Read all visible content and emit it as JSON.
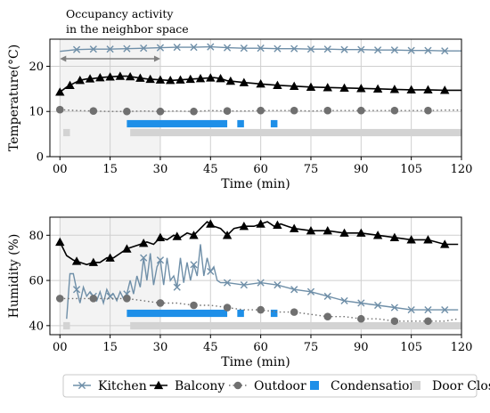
{
  "chart_data": [
    {
      "id": "temperature",
      "type": "line",
      "ylabel": "Temperature(°C)",
      "xlabel": "Time (min)",
      "xlim": [
        -3,
        120
      ],
      "ylim": [
        0,
        26
      ],
      "xticks": [
        0,
        15,
        30,
        45,
        60,
        75,
        90,
        105,
        120
      ],
      "xtick_labels": [
        "00",
        "15",
        "30",
        "45",
        "60",
        "75",
        "90",
        "105",
        "120"
      ],
      "yticks": [
        0,
        10,
        20
      ],
      "grid": true,
      "annotation": {
        "lines": [
          "Occupancy activity",
          "in the neighbor space"
        ],
        "span": [
          0,
          30
        ]
      },
      "shaded_interval": [
        0,
        30
      ],
      "series": [
        {
          "name": "Kitchen",
          "color": "#6f8fa8",
          "marker": "x",
          "x": [
            0,
            5,
            10,
            15,
            20,
            25,
            30,
            35,
            40,
            45,
            50,
            55,
            60,
            65,
            70,
            75,
            80,
            85,
            90,
            95,
            100,
            105,
            110,
            115,
            120
          ],
          "y": [
            23.3,
            23.7,
            23.8,
            23.8,
            23.9,
            24.0,
            24.1,
            24.2,
            24.2,
            24.3,
            24.1,
            24.0,
            24.0,
            23.9,
            23.9,
            23.8,
            23.8,
            23.7,
            23.7,
            23.6,
            23.6,
            23.5,
            23.5,
            23.4,
            23.4
          ],
          "marker_x": [
            5,
            10,
            15,
            20,
            25,
            30,
            35,
            40,
            45,
            50,
            55,
            60,
            65,
            70,
            75,
            80,
            85,
            90,
            95,
            100,
            105,
            110,
            115
          ]
        },
        {
          "name": "Balcony",
          "color": "#000000",
          "marker": "triangle",
          "x": [
            0,
            2,
            4,
            6,
            8,
            10,
            12,
            14,
            16,
            18,
            20,
            22,
            24,
            26,
            28,
            30,
            32,
            34,
            36,
            38,
            40,
            42,
            44,
            46,
            48,
            50,
            55,
            60,
            65,
            70,
            75,
            80,
            85,
            90,
            95,
            100,
            105,
            110,
            115,
            120
          ],
          "y": [
            14.3,
            15.4,
            16.2,
            16.9,
            17.2,
            17.3,
            17.5,
            17.6,
            17.7,
            17.8,
            17.8,
            17.6,
            17.4,
            17.2,
            17.1,
            17.0,
            16.9,
            16.9,
            17.0,
            17.1,
            17.2,
            17.3,
            17.4,
            17.5,
            17.3,
            16.8,
            16.4,
            16.1,
            15.8,
            15.6,
            15.4,
            15.3,
            15.2,
            15.1,
            15.0,
            14.9,
            14.8,
            14.8,
            14.7,
            14.7
          ],
          "marker_x": [
            0,
            3,
            6,
            9,
            12,
            15,
            18,
            21,
            24,
            27,
            30,
            33,
            36,
            39,
            42,
            45,
            48,
            51,
            55,
            60,
            65,
            70,
            75,
            80,
            85,
            90,
            95,
            100,
            105,
            110,
            115
          ]
        },
        {
          "name": "Outdoor",
          "color": "#707070",
          "marker": "circle",
          "x": [
            0,
            5,
            10,
            15,
            20,
            25,
            30,
            35,
            40,
            45,
            50,
            55,
            60,
            65,
            70,
            75,
            80,
            85,
            90,
            95,
            100,
            105,
            110,
            115,
            120
          ],
          "y": [
            10.4,
            10.2,
            10.1,
            10.0,
            10.0,
            10.1,
            10.0,
            10.1,
            10.0,
            10.2,
            10.1,
            10.1,
            10.2,
            10.2,
            10.2,
            10.1,
            10.2,
            10.2,
            10.2,
            10.2,
            10.2,
            10.2,
            10.2,
            10.3,
            10.3
          ],
          "marker_x": [
            0,
            10,
            20,
            30,
            40,
            50,
            60,
            70,
            80,
            90,
            100,
            110
          ]
        }
      ],
      "condensation": {
        "color": "#1e8fe8",
        "intervals": [
          [
            20,
            50
          ],
          [
            53,
            55
          ],
          [
            63,
            65
          ]
        ]
      },
      "door_closed": {
        "color": "#d3d3d3",
        "intervals": [
          [
            1,
            3
          ],
          [
            21,
            120
          ]
        ]
      }
    },
    {
      "id": "humidity",
      "type": "line",
      "ylabel": "Humidity (%)",
      "xlabel": "Time (min)",
      "xlim": [
        -3,
        120
      ],
      "ylim": [
        36,
        88
      ],
      "xticks": [
        0,
        15,
        30,
        45,
        60,
        75,
        90,
        105,
        120
      ],
      "xtick_labels": [
        "00",
        "15",
        "30",
        "45",
        "60",
        "75",
        "90",
        "105",
        "120"
      ],
      "yticks": [
        40,
        60,
        80
      ],
      "grid": true,
      "shaded_interval": [
        0,
        30
      ],
      "series": [
        {
          "name": "Kitchen",
          "color": "#6f8fa8",
          "marker": "x",
          "x": [
            2,
            3,
            4,
            5,
            6,
            7,
            8,
            9,
            10,
            11,
            12,
            13,
            14,
            15,
            16,
            17,
            18,
            19,
            20,
            21,
            22,
            23,
            24,
            25,
            26,
            27,
            28,
            29,
            30,
            31,
            32,
            33,
            34,
            35,
            36,
            37,
            38,
            39,
            40,
            41,
            42,
            43,
            44,
            45,
            46,
            47,
            48,
            50,
            55,
            60,
            65,
            70,
            75,
            80,
            85,
            90,
            95,
            100,
            105,
            110,
            115,
            119
          ],
          "y": [
            43,
            63,
            63,
            56,
            50,
            57,
            53,
            55,
            53,
            51,
            55,
            50,
            56,
            53,
            54,
            51,
            55,
            52,
            54,
            60,
            54,
            62,
            57,
            70,
            60,
            72,
            58,
            66,
            69,
            58,
            70,
            60,
            62,
            57,
            70,
            59,
            68,
            60,
            67,
            62,
            76,
            62,
            70,
            64,
            66,
            60,
            59,
            59,
            58,
            59,
            58,
            56,
            55,
            53,
            51,
            50,
            49,
            48,
            47,
            47,
            47,
            47
          ],
          "marker_x": [
            5,
            10,
            15,
            20,
            25,
            30,
            35,
            40,
            45,
            50,
            55,
            60,
            65,
            70,
            75,
            80,
            85,
            90,
            95,
            100,
            105,
            110,
            115
          ]
        },
        {
          "name": "Balcony",
          "color": "#000000",
          "marker": "triangle",
          "x": [
            0,
            2,
            4,
            6,
            8,
            10,
            12,
            14,
            16,
            18,
            20,
            22,
            24,
            26,
            28,
            30,
            32,
            34,
            36,
            38,
            40,
            42,
            44,
            46,
            48,
            50,
            52,
            55,
            58,
            60,
            62,
            64,
            66,
            68,
            70,
            75,
            80,
            85,
            90,
            95,
            100,
            105,
            110,
            115,
            119
          ],
          "y": [
            77,
            71,
            69,
            68,
            67,
            68,
            68,
            70,
            70,
            72,
            74,
            75,
            76,
            77,
            76,
            79,
            78,
            80,
            79,
            81,
            80,
            83,
            86,
            84,
            83,
            80,
            83,
            84,
            84,
            85,
            86,
            84,
            85,
            84,
            83,
            82,
            82,
            81,
            81,
            80,
            79,
            78,
            78,
            76,
            76
          ],
          "marker_x": [
            0,
            5,
            10,
            15,
            20,
            25,
            30,
            35,
            40,
            45,
            50,
            55,
            60,
            65,
            70,
            75,
            80,
            85,
            90,
            95,
            100,
            105,
            110,
            115
          ]
        },
        {
          "name": "Outdoor",
          "color": "#707070",
          "marker": "circle",
          "x": [
            0,
            5,
            10,
            15,
            20,
            25,
            30,
            35,
            40,
            45,
            50,
            55,
            60,
            65,
            70,
            75,
            80,
            85,
            90,
            95,
            100,
            105,
            110,
            115,
            119
          ],
          "y": [
            52,
            52,
            52,
            52,
            52,
            51,
            50,
            50,
            49,
            49,
            48,
            47,
            47,
            46,
            46,
            45,
            44,
            44,
            43,
            43,
            42,
            42,
            42,
            42,
            43
          ],
          "marker_x": [
            0,
            10,
            20,
            30,
            40,
            50,
            60,
            70,
            80,
            90,
            100,
            110
          ]
        }
      ],
      "condensation": {
        "color": "#1e8fe8",
        "intervals": [
          [
            20,
            50
          ],
          [
            53,
            55
          ],
          [
            63,
            65
          ]
        ]
      },
      "door_closed": {
        "color": "#d3d3d3",
        "intervals": [
          [
            1,
            3
          ],
          [
            21,
            120
          ]
        ]
      }
    }
  ],
  "legend": {
    "placement": "bottom-center",
    "entries": [
      {
        "label": "Kitchen",
        "marker": "x",
        "color": "#6f8fa8",
        "line": "solid"
      },
      {
        "label": "Balcony",
        "marker": "triangle",
        "color": "#000000",
        "line": "solid"
      },
      {
        "label": "Outdoor",
        "marker": "circle",
        "color": "#707070",
        "line": "dotted"
      },
      {
        "label": "Condensation",
        "marker": "square",
        "color": "#1e8fe8",
        "line": "none"
      },
      {
        "label": "Door Closed",
        "marker": "square",
        "color": "#d3d3d3",
        "line": "none"
      }
    ]
  }
}
